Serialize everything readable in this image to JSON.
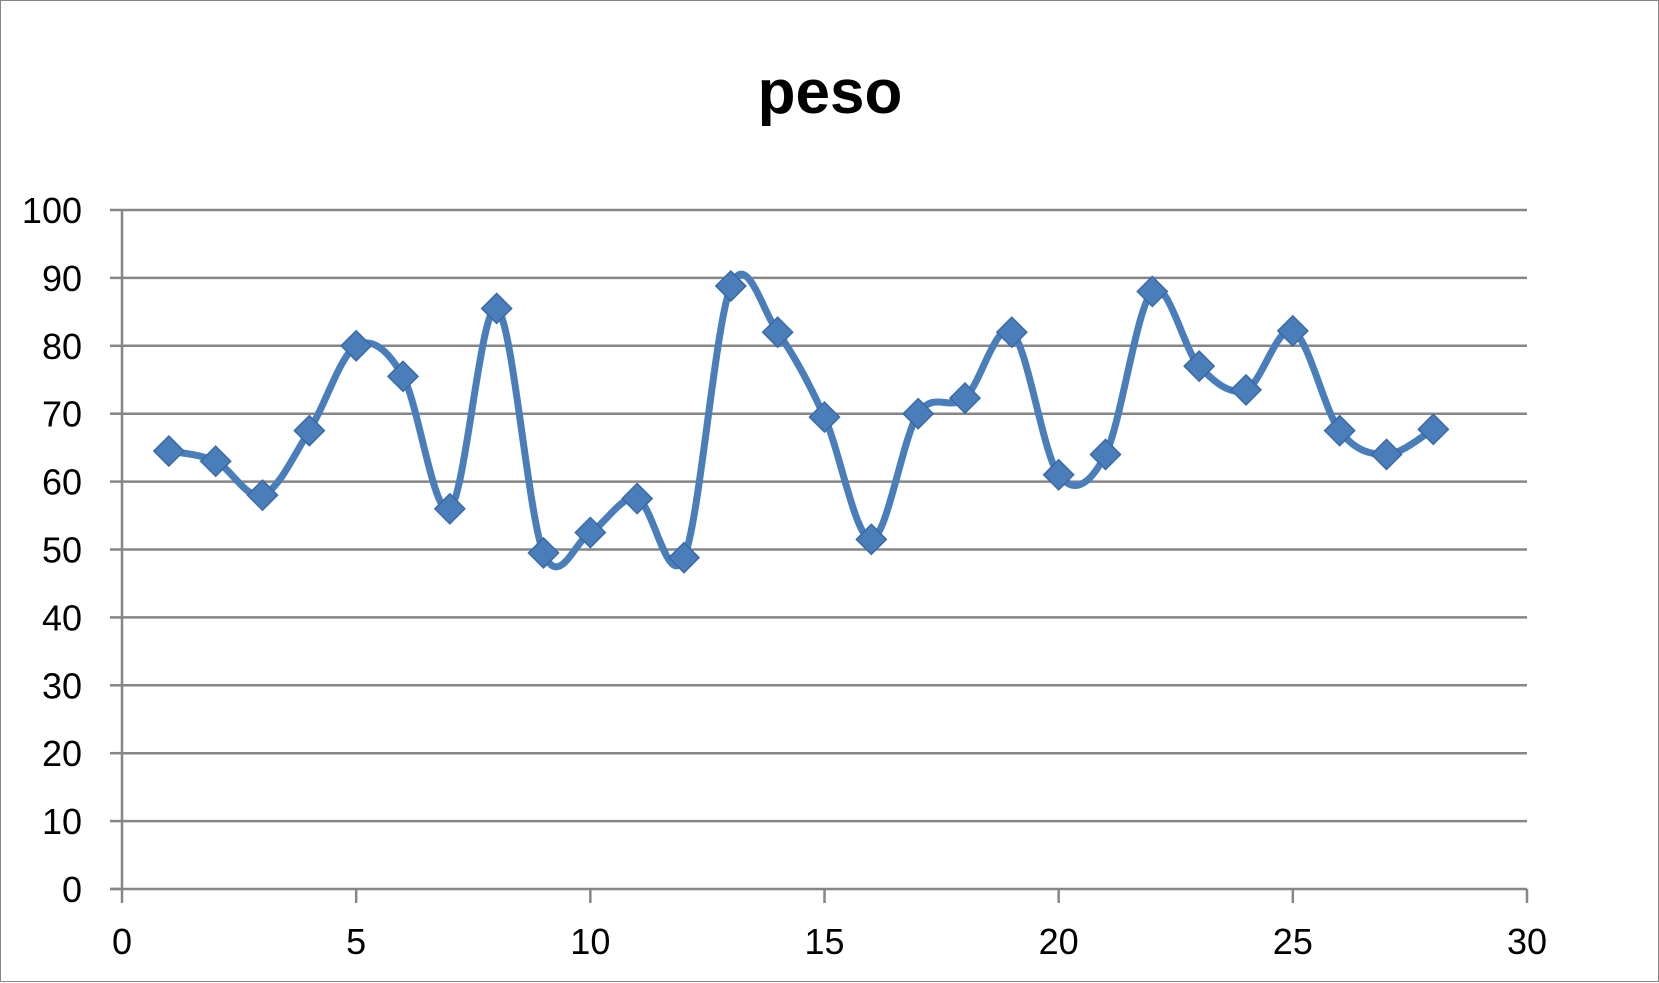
{
  "chart_data": {
    "type": "scatter",
    "title": "peso",
    "xlabel": "",
    "ylabel": "",
    "xlim": [
      0,
      30
    ],
    "ylim": [
      0,
      100
    ],
    "xticks": [
      "0",
      "5",
      "10",
      "15",
      "20",
      "25",
      "30"
    ],
    "yticks": [
      "0",
      "10",
      "20",
      "30",
      "40",
      "50",
      "60",
      "70",
      "80",
      "90",
      "100"
    ],
    "grid": true,
    "legend": "none",
    "line_style": "smoothed",
    "marker": "diamond",
    "series": [
      {
        "color": "#4a7ebb",
        "x": [
          1,
          2,
          3,
          4,
          5,
          6,
          7,
          8,
          9,
          10,
          11,
          12,
          13,
          14,
          15,
          16,
          17,
          18,
          19,
          20,
          21,
          22,
          23,
          24,
          25,
          26,
          27,
          28
        ],
        "y": [
          64.5,
          63,
          58,
          67.5,
          80,
          75.5,
          56,
          85.5,
          49.5,
          52.5,
          57.5,
          48.8,
          88.8,
          82,
          69.5,
          51.5,
          70,
          72.3,
          82,
          61,
          64,
          88,
          77,
          73.5,
          82.2,
          67.5,
          64,
          67.7
        ]
      }
    ]
  }
}
